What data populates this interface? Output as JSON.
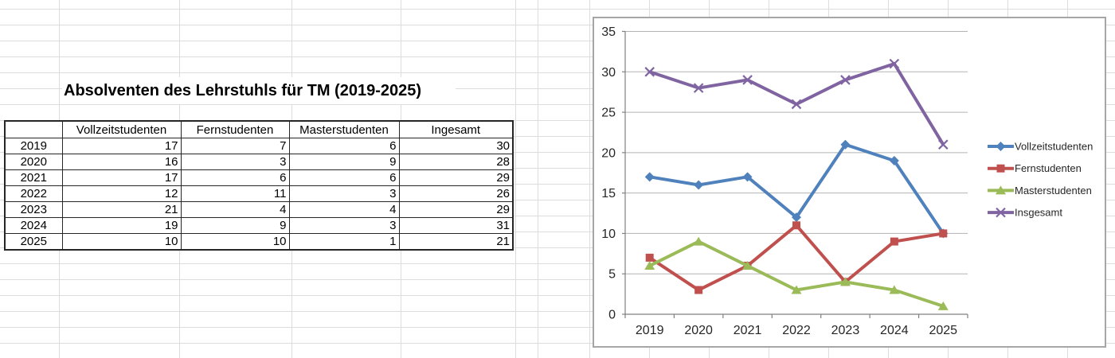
{
  "app": {
    "background": "#ffffff",
    "sheet_gridline_color": "#dcdcdc",
    "table_border_color": "#262626"
  },
  "title": "Absolventen des Lehrstuhls für TM (2019-2025)",
  "table": {
    "headers": [
      "",
      "Vollzeitstudenten",
      "Fernstudenten",
      "Masterstudenten",
      "Ingesamt"
    ],
    "rows": [
      {
        "year": "2019",
        "values": [
          "17",
          "7",
          "6",
          "30"
        ]
      },
      {
        "year": "2020",
        "values": [
          "16",
          "3",
          "9",
          "28"
        ]
      },
      {
        "year": "2021",
        "values": [
          "17",
          "6",
          "6",
          "29"
        ]
      },
      {
        "year": "2022",
        "values": [
          "12",
          "11",
          "3",
          "26"
        ]
      },
      {
        "year": "2023",
        "values": [
          "21",
          "4",
          "4",
          "29"
        ]
      },
      {
        "year": "2024",
        "values": [
          "19",
          "9",
          "3",
          "31"
        ]
      },
      {
        "year": "2025",
        "values": [
          "10",
          "10",
          "1",
          "21"
        ]
      }
    ]
  },
  "chart_data": {
    "type": "line",
    "x": [
      "2019",
      "2020",
      "2021",
      "2022",
      "2023",
      "2024",
      "2025"
    ],
    "series": [
      {
        "name": "Vollzeitstudenten",
        "marker": "diamond",
        "color": "#4F81BD",
        "values": [
          17,
          16,
          17,
          12,
          21,
          19,
          10
        ]
      },
      {
        "name": "Fernstudenten",
        "marker": "square",
        "color": "#C0504D",
        "values": [
          7,
          3,
          6,
          11,
          4,
          9,
          10
        ]
      },
      {
        "name": "Masterstudenten",
        "marker": "triangle",
        "color": "#9BBB59",
        "values": [
          6,
          9,
          6,
          3,
          4,
          3,
          1
        ]
      },
      {
        "name": "Insgesamt",
        "marker": "x",
        "color": "#8064A2",
        "values": [
          30,
          28,
          29,
          26,
          29,
          31,
          21
        ]
      }
    ],
    "ylim": [
      0,
      35
    ],
    "yticks": [
      0,
      5,
      10,
      15,
      20,
      25,
      30,
      35
    ],
    "grid": true,
    "legend_position": "right",
    "axis_color": "#808080",
    "grid_color": "#b3b3b3",
    "label_color": "#262626",
    "tick_label_font_px": 16,
    "legend_font_px": 13
  }
}
